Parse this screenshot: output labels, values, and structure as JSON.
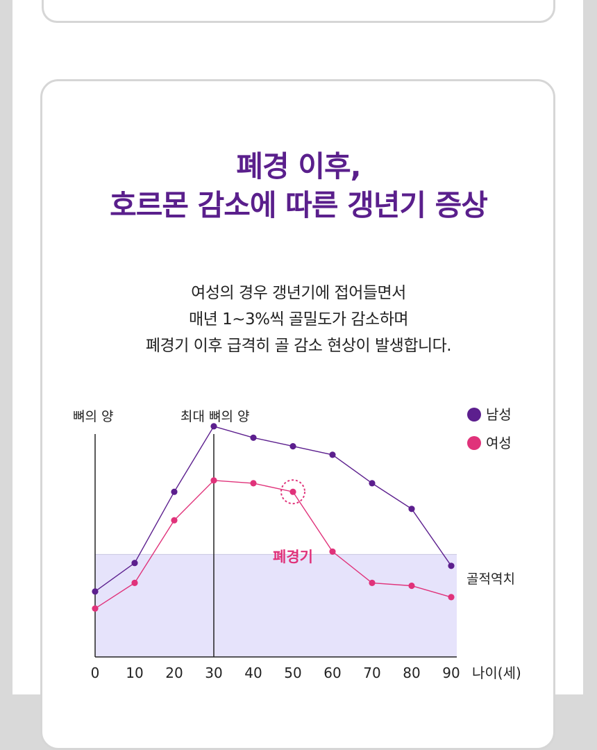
{
  "heading": {
    "line1": "폐경 이후,",
    "line2": "호르몬 감소에 따른 갱년기 증상"
  },
  "description": {
    "line1": "여성의 경우 갱년기에 접어들면서",
    "line2": "매년 1~3%씩 골밀도가 감소하며",
    "line3": "폐경기 이후 급격히 골 감소 현상이 발생합니다."
  },
  "colors": {
    "title": "#5a1f8c",
    "male": "#5c1f8e",
    "female": "#e0327a",
    "threshold_band": "#e6e3fb"
  },
  "chart_data": {
    "type": "line",
    "ylabel": "뼈의 양",
    "xlabel": "나이(세)",
    "x_ticks": [
      "0",
      "10",
      "20",
      "30",
      "40",
      "50",
      "60",
      "70",
      "80",
      "90"
    ],
    "xlim": [
      0,
      90
    ],
    "ylim": [
      0,
      100
    ],
    "series": [
      {
        "name": "남성",
        "x": [
          0,
          10,
          20,
          30,
          40,
          50,
          60,
          70,
          80,
          90
        ],
        "y": [
          23,
          33,
          58,
          81,
          77,
          74,
          71,
          61,
          52,
          32
        ]
      },
      {
        "name": "여성",
        "x": [
          0,
          10,
          20,
          30,
          40,
          50,
          60,
          70,
          80,
          90
        ],
        "y": [
          17,
          26,
          48,
          62,
          61,
          58,
          37,
          26,
          25,
          21
        ]
      }
    ],
    "peak_marker": {
      "label": "최대 뼈의 양",
      "x": 30
    },
    "threshold": {
      "label": "골적역치",
      "y": 36
    },
    "annotation": {
      "label": "폐경기",
      "series": "여성",
      "x": 50
    }
  }
}
